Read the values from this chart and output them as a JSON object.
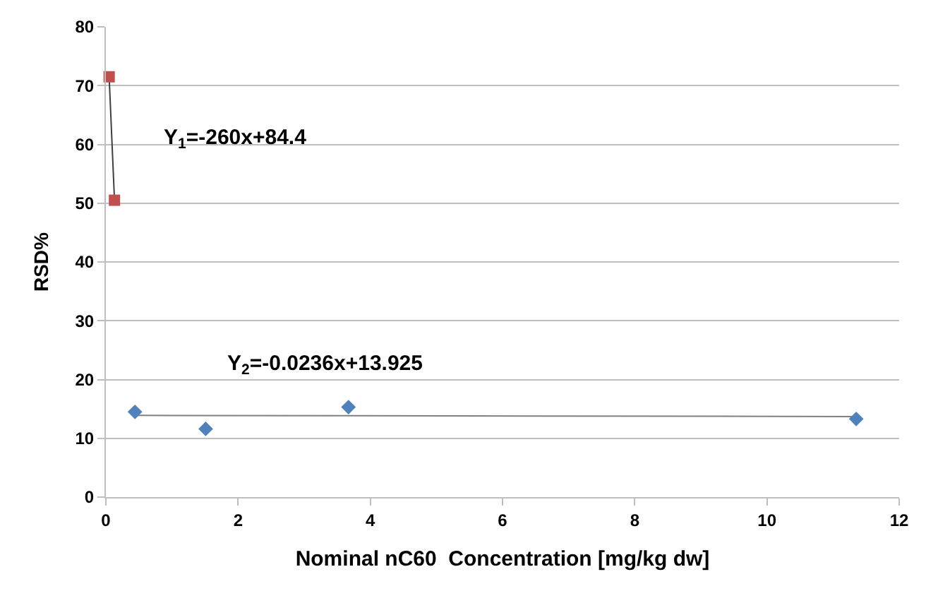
{
  "chart_data": {
    "type": "scatter",
    "xlabel": "Nominal nC60  Concentration [mg/kg dw]",
    "ylabel": "RSD%",
    "xlim": [
      0,
      12
    ],
    "xticks": [
      0,
      2,
      4,
      6,
      8,
      10,
      12
    ],
    "ylim": [
      0,
      80
    ],
    "yticks": [
      0,
      10,
      20,
      30,
      40,
      50,
      60,
      70,
      80
    ],
    "grid": "y",
    "series": [
      {
        "type": "line",
        "color": "#404040",
        "x": [
          0.05,
          0.13
        ],
        "values": [
          71.4,
          50.6
        ],
        "marker": "none"
      },
      {
        "type": "line",
        "color": "#808080",
        "x": [
          0.44,
          11.35
        ],
        "values": [
          13.9,
          13.7
        ],
        "marker": "none"
      },
      {
        "color": "#c0504d",
        "marker": "square",
        "x": [
          0.05,
          0.13
        ],
        "values": [
          71.5,
          50.5
        ]
      },
      {
        "color": "#4f81bd",
        "marker": "diamond",
        "x": [
          0.44,
          1.51,
          3.67,
          11.35
        ],
        "values": [
          14.5,
          11.6,
          15.3,
          13.3
        ]
      }
    ],
    "annotations": [
      "Y$_{1}$=-260x+84.4",
      "Y$_{2}$=-0.0236x+13.925"
    ]
  }
}
